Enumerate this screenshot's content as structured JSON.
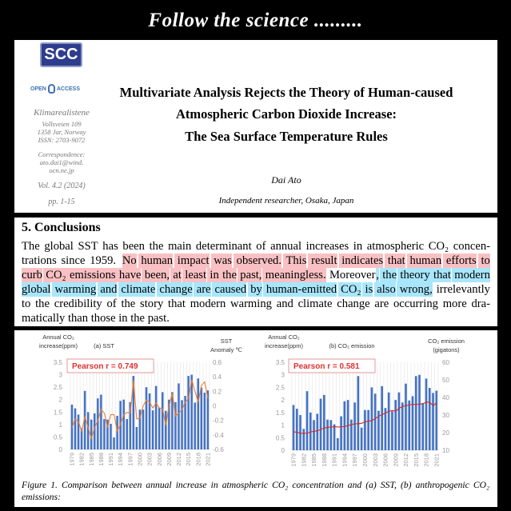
{
  "banner": "Follow the science .........",
  "header": {
    "logo_text": "SCC",
    "open_access": [
      "OPEN",
      "ACCESS"
    ],
    "publisher": "Klimarealistene",
    "address": [
      "Vollsveien 109",
      "1358 Jar, Norway",
      "ISSN: 2703-9072"
    ],
    "correspondence": [
      "Correspondence:",
      "ato.dai1@wind.",
      "ocn.ne.jp"
    ],
    "volume": "Vol. 4.2 (2024)",
    "pages": "pp. 1-15",
    "title_lines": [
      "Multivariate Analysis Rejects the Theory of Human-caused",
      "Atmospheric Carbon Dioxide Increase:",
      "The Sea Surface Temperature Rules"
    ],
    "author": "Dai Ato",
    "affiliation": "Independent researcher, Osaka, Japan"
  },
  "conclusions": {
    "heading": "5. Conclusions",
    "lines": [
      [
        {
          "t": "The global SST has been the main determinant of annual increases in atmospheric CO₂ concen-",
          "h": ""
        }
      ],
      [
        {
          "t": "trations since 1959. ",
          "h": ""
        },
        {
          "t": "No human impact was observed. This result indicates that human efforts to",
          "h": "red"
        }
      ],
      [
        {
          "t": "curb CO₂ emissions have been, at least in the past, meaningless.",
          "h": "red"
        },
        {
          "t": " Moreover",
          "h": ""
        },
        {
          "t": ", the theory that modern",
          "h": "blue"
        }
      ],
      [
        {
          "t": "global warming and climate change are caused by human-emitted CO₂ is also wrong,",
          "h": "blue"
        },
        {
          "t": " irrelevantly",
          "h": ""
        }
      ],
      [
        {
          "t": "to the credibility of the story that modern warming and climate change are occurring more dra-",
          "h": ""
        }
      ],
      [
        {
          "t": "matically than those in the past.",
          "h": ""
        }
      ]
    ],
    "highlight_colors": {
      "red": "#f9c0c3",
      "blue": "#a8e6fb"
    }
  },
  "caption": "Figure 1. Comparison between annual increase in atmospheric CO₂ concentration and (a) SST, (b) anthropogenic CO₂ emissions:",
  "chart_data": [
    {
      "type": "bar+line",
      "title": "(a) SST",
      "ylabel": "Annual CO₂ increase(ppm)",
      "y2label": "SST Anomaly ℃",
      "annotation": "Pearson r = 0.749",
      "ylim": [
        0,
        3.5
      ],
      "y2lim": [
        -0.6,
        0.6
      ],
      "yticks": [
        "0",
        "0.5",
        "1",
        "1.5",
        "2",
        "2.5",
        "3",
        "3.5"
      ],
      "y2ticks": [
        "-0.6",
        "-0.4",
        "-0.2",
        "0",
        "0.2",
        "0.4",
        "0.6"
      ],
      "x": [
        1979,
        1980,
        1981,
        1982,
        1983,
        1984,
        1985,
        1986,
        1987,
        1988,
        1989,
        1990,
        1991,
        1992,
        1993,
        1994,
        1995,
        1996,
        1997,
        1998,
        1999,
        2000,
        2001,
        2002,
        2003,
        2004,
        2005,
        2006,
        2007,
        2008,
        2009,
        2010,
        2011,
        2012,
        2013,
        2014,
        2015,
        2016,
        2017,
        2018,
        2019,
        2020,
        2021
      ],
      "xticks": [
        "1979",
        "1982",
        "1985",
        "1988",
        "1991",
        "1994",
        "1997",
        "2000",
        "2003",
        "2006",
        "2009",
        "2012",
        "2015",
        "2018",
        "2021"
      ],
      "bars": [
        1.8,
        1.65,
        1.4,
        0.85,
        2.35,
        1.5,
        1.2,
        1.45,
        2.05,
        2.2,
        1.22,
        1.2,
        1.03,
        0.48,
        1.35,
        1.95,
        2.0,
        1.22,
        1.9,
        2.95,
        0.9,
        1.6,
        1.6,
        2.5,
        2.25,
        1.57,
        2.55,
        1.68,
        2.3,
        1.55,
        2.0,
        2.3,
        1.9,
        2.65,
        1.98,
        2.15,
        2.95,
        3.0,
        1.88,
        2.85,
        2.48,
        2.28,
        2.37
      ],
      "line": [
        -0.3,
        -0.18,
        -0.22,
        -0.35,
        -0.15,
        -0.3,
        -0.45,
        -0.3,
        -0.2,
        -0.05,
        -0.1,
        -0.3,
        -0.12,
        -0.12,
        -0.35,
        -0.25,
        -0.12,
        -0.09,
        -0.1,
        0.35,
        -0.18,
        -0.17,
        0.0,
        0.08,
        0.05,
        -0.03,
        0.04,
        -0.03,
        -0.04,
        -0.27,
        0.0,
        0.17,
        -0.14,
        -0.1,
        -0.05,
        0.05,
        0.1,
        0.36,
        0.2,
        0.05,
        0.28,
        0.33,
        0.1
      ],
      "colors": {
        "bars": "#4472c4",
        "line": "#ed7d31",
        "annotation": "#e03030"
      }
    },
    {
      "type": "bar+line",
      "title": "(b) CO₂ emission",
      "ylabel": "Annual CO₂ increase(ppm)",
      "y2label": "CO₂ emission (gigatons)",
      "annotation": "Pearson r = 0.581",
      "ylim": [
        0,
        3.5
      ],
      "y2lim": [
        10,
        60
      ],
      "yticks": [
        "0",
        "0.5",
        "1",
        "1.5",
        "2",
        "2.5",
        "3",
        "3.5"
      ],
      "y2ticks": [
        "10",
        "20",
        "30",
        "40",
        "50",
        "60"
      ],
      "xticks": [
        "1979",
        "1982",
        "1985",
        "1988",
        "1991",
        "1994",
        "1997",
        "2000",
        "2003",
        "2006",
        "2009",
        "2012",
        "2015",
        "2018",
        "2021"
      ],
      "line": [
        20.5,
        20.2,
        19.7,
        19.6,
        19.7,
        20.4,
        20.7,
        21.1,
        21.8,
        22.6,
        23.0,
        23.2,
        23.4,
        23.2,
        23.3,
        23.5,
        24.0,
        24.6,
        25.0,
        25.1,
        25.3,
        26.1,
        26.5,
        26.8,
        28.0,
        29.3,
        30.3,
        31.2,
        32.1,
        32.6,
        32.2,
        33.8,
        34.9,
        35.3,
        35.8,
        36.1,
        36.0,
        36.1,
        36.5,
        37.3,
        37.3,
        35.2,
        37.1
      ],
      "colors": {
        "bars": "#4472c4",
        "line": "#d62728",
        "annotation": "#e03030"
      }
    }
  ]
}
